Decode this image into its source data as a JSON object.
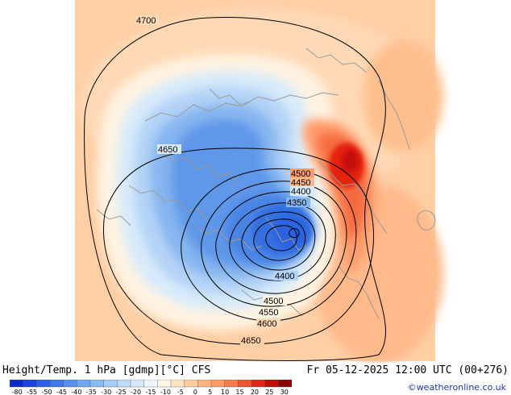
{
  "header": {
    "title": "Height/Temp. 1 hPa [gdmp][°C] CFS",
    "valid_time": "Fr 05-12-2025 12:00 UTC (00+276)",
    "credit": "©weatheronline.co.uk"
  },
  "legend": {
    "labels": [
      "-80",
      "-55",
      "-50",
      "-45",
      "-40",
      "-35",
      "-30",
      "-25",
      "-20",
      "-15",
      "-10",
      "-5",
      "0",
      "5",
      "10",
      "15",
      "20",
      "25",
      "30"
    ],
    "colors": [
      "#0a2ad0",
      "#1a44e0",
      "#2c60e6",
      "#3e78ea",
      "#5690ee",
      "#6ea6f1",
      "#88baf3",
      "#a2ccf6",
      "#bcdcf8",
      "#d6eafa",
      "#eef6fd",
      "#fff7e6",
      "#ffe4c2",
      "#ffcc9c",
      "#ffb47e",
      "#ff9a62",
      "#f77a4a",
      "#ef5430",
      "#e02818",
      "#c00e0a",
      "#8a0606"
    ]
  },
  "contours": {
    "labels": [
      "4700",
      "4650",
      "4500",
      "4450",
      "4400",
      "4350",
      "4400",
      "4500",
      "4550",
      "4600",
      "4650"
    ]
  },
  "colors": {
    "map_background": "#ffcfa5",
    "cold_core": "#2c62e0",
    "warm_core": "#e4230f",
    "coastline": "#9a9a9a",
    "contour": "#000000"
  }
}
